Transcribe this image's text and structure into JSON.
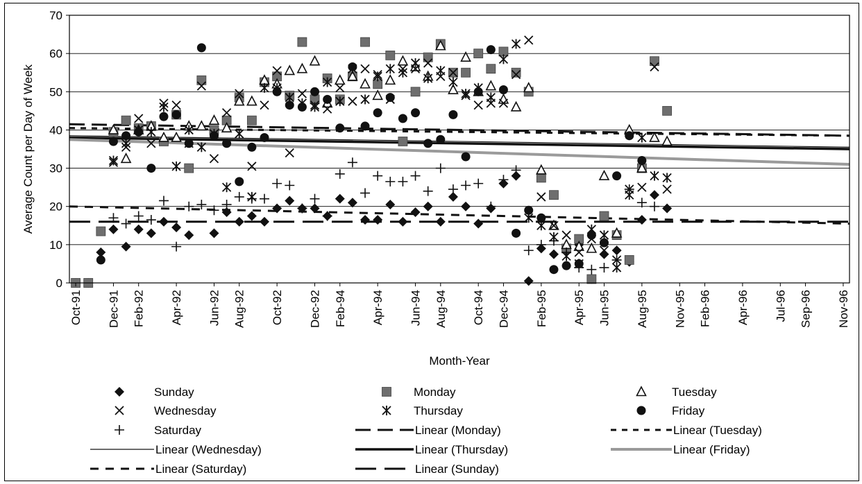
{
  "chart_data": {
    "type": "scatter",
    "title": "",
    "xlabel": "Month-Year",
    "ylabel": "Average Count per Day of Week",
    "ylim": [
      0,
      70
    ],
    "yticks": [
      0,
      10,
      20,
      30,
      40,
      50,
      60,
      70
    ],
    "x_tick_labels": [
      "Oct-91",
      "Dec-91",
      "Feb-92",
      "Apr-92",
      "Jun-92",
      "Aug-92",
      "Oct-92",
      "Dec-92",
      "Feb-94",
      "Apr-94",
      "Jun-94",
      "Aug-94",
      "Oct-94",
      "Dec-94",
      "Feb-95",
      "Apr-95",
      "Jun-95",
      "Aug-95",
      "Nov-95",
      "Feb-96",
      "Apr-96",
      "Jul-96",
      "Sep-96",
      "Nov-96"
    ],
    "x_count": 62,
    "grid": "horizontal",
    "legend_position": "bottom",
    "series": [
      {
        "name": "Sunday",
        "marker": "diamond",
        "x": [
          0,
          1,
          2,
          3,
          4,
          5,
          6,
          7,
          8,
          9,
          10,
          11,
          12,
          13,
          14,
          15,
          16,
          17,
          18,
          19,
          20,
          21,
          22,
          23,
          24,
          25,
          26,
          27,
          28,
          29,
          30,
          31,
          32,
          33,
          34,
          35,
          36,
          37,
          38,
          39,
          40,
          41,
          42,
          43,
          44,
          45,
          46,
          47,
          48,
          49,
          50,
          51,
          52,
          53,
          54,
          55,
          56,
          57,
          58,
          59,
          60,
          61
        ],
        "y": [
          0,
          0,
          8,
          14,
          9.5,
          14,
          13,
          16,
          14.5,
          12.5,
          null,
          13,
          18.5,
          16,
          17.5,
          16,
          19.5,
          21.5,
          19.5,
          19.5,
          17.5,
          22,
          21,
          16.5,
          16.5,
          20.5,
          16,
          18.5,
          20,
          16,
          22.5,
          20,
          15.5,
          19.5,
          26,
          28,
          0.5,
          9,
          7.5,
          8.5,
          10,
          1,
          7.5,
          8.5,
          5.5,
          16.5,
          23,
          19.5,
          null,
          null,
          null,
          null,
          null,
          null,
          null,
          null,
          null,
          null,
          null,
          null,
          null,
          null
        ]
      },
      {
        "name": "Monday",
        "marker": "square",
        "x": [
          0,
          1,
          2,
          3,
          4,
          5,
          6,
          7,
          8,
          9,
          10,
          11,
          12,
          13,
          14,
          15,
          16,
          17,
          18,
          19,
          20,
          21,
          22,
          23,
          24,
          25,
          26,
          27,
          28,
          29,
          30,
          31,
          32,
          33,
          34,
          35,
          36,
          37,
          38,
          39,
          40,
          41,
          42,
          43,
          44,
          45,
          46,
          47
        ],
        "y": [
          0,
          0,
          13.5,
          39.5,
          42.5,
          40.5,
          41,
          37,
          44,
          30,
          53,
          40,
          42.5,
          48.5,
          42.5,
          52.5,
          54,
          49,
          63,
          48,
          53.5,
          48,
          54,
          63,
          52,
          59.5,
          37,
          50,
          59,
          62.5,
          55,
          55,
          60,
          56,
          60.5,
          55,
          50,
          27.5,
          23,
          9,
          11.5,
          1,
          17.5,
          12.5,
          6,
          30,
          58,
          45
        ]
      },
      {
        "name": "Tuesday",
        "marker": "triangle",
        "x": [
          3,
          4,
          5,
          6,
          7,
          8,
          9,
          10,
          11,
          12,
          13,
          14,
          15,
          16,
          17,
          18,
          19,
          20,
          21,
          22,
          23,
          24,
          25,
          26,
          27,
          28,
          29,
          30,
          31,
          32,
          33,
          34,
          35,
          36,
          37,
          38,
          39,
          40,
          41,
          42,
          43,
          44,
          45,
          46,
          47
        ],
        "y": [
          40,
          32.5,
          40,
          41,
          38,
          38,
          41,
          41,
          42.5,
          40.5,
          47.5,
          47.5,
          53,
          52,
          55.5,
          56,
          58,
          47,
          53,
          54,
          52,
          49,
          53,
          58,
          56.5,
          54,
          62,
          50.5,
          59,
          50,
          51.5,
          48,
          46,
          51,
          29.5,
          15,
          10,
          9.5,
          9,
          28,
          13,
          40,
          30,
          38,
          37
        ]
      },
      {
        "name": "Wednesday",
        "marker": "x",
        "x": [
          3,
          4,
          5,
          6,
          7,
          8,
          9,
          10,
          11,
          12,
          13,
          14,
          15,
          16,
          17,
          18,
          19,
          20,
          21,
          22,
          23,
          24,
          25,
          26,
          27,
          28,
          29,
          30,
          31,
          32,
          33,
          34,
          35,
          36,
          37,
          38,
          39,
          40,
          41,
          42,
          43,
          44,
          45,
          46,
          47
        ],
        "y": [
          31.5,
          35.5,
          43,
          36.5,
          47,
          46.5,
          36.5,
          51.5,
          32.5,
          44.5,
          49.5,
          30.5,
          46.5,
          55.5,
          34,
          49.5,
          46.5,
          45.5,
          51,
          47.5,
          56,
          54.5,
          48,
          56,
          56,
          57.5,
          54,
          55,
          49,
          46.5,
          47,
          47,
          54.5,
          63.5,
          22.5,
          15,
          12.5,
          8,
          11.5,
          8.5,
          6,
          24.5,
          25,
          56.5,
          24.5
        ]
      },
      {
        "name": "Thursday",
        "marker": "asterisk",
        "x": [
          3,
          4,
          5,
          6,
          7,
          8,
          9,
          10,
          11,
          12,
          13,
          14,
          15,
          16,
          17,
          18,
          19,
          20,
          21,
          22,
          23,
          24,
          25,
          26,
          27,
          28,
          29,
          30,
          31,
          32,
          33,
          34,
          35,
          36,
          37,
          38,
          39,
          40,
          41,
          42,
          43,
          44,
          45,
          46,
          47
        ],
        "y": [
          32,
          36.5,
          40,
          39.5,
          46,
          30.5,
          40,
          35.5,
          39,
          25,
          39,
          22.5,
          51,
          51,
          48.5,
          47,
          46,
          52.5,
          47.5,
          56,
          48,
          54,
          56,
          55,
          57.5,
          53.5,
          55.5,
          52.5,
          49.5,
          51,
          48.5,
          58.5,
          62.5,
          17,
          15,
          12,
          7,
          5,
          14,
          12.5,
          4,
          23,
          38,
          28,
          27.5
        ]
      },
      {
        "name": "Friday",
        "marker": "circle",
        "x": [
          2,
          3,
          4,
          5,
          6,
          7,
          8,
          9,
          10,
          11,
          12,
          13,
          14,
          15,
          16,
          17,
          18,
          19,
          20,
          21,
          22,
          23,
          24,
          25,
          26,
          27,
          28,
          29,
          30,
          31,
          32,
          33,
          34,
          35,
          36,
          37,
          38,
          39,
          40,
          41,
          42,
          43,
          44,
          45,
          46,
          47
        ],
        "y": [
          6,
          37,
          38.5,
          39.5,
          30,
          43.5,
          44,
          36.5,
          61.5,
          38.5,
          36.5,
          26.5,
          35.5,
          38,
          50,
          46.5,
          46,
          50,
          48,
          40.5,
          56.5,
          41,
          44.5,
          48.5,
          43,
          44.5,
          36.5,
          37.5,
          44,
          33,
          50,
          61,
          50.5,
          13,
          19,
          17,
          3.5,
          4.5,
          5,
          12.5,
          10.5,
          28,
          38.5,
          32,
          null,
          null
        ]
      },
      {
        "name": "Saturday",
        "marker": "plus",
        "x": [
          3,
          4,
          5,
          6,
          7,
          8,
          9,
          10,
          11,
          12,
          13,
          14,
          15,
          16,
          17,
          18,
          19,
          20,
          21,
          22,
          23,
          24,
          25,
          26,
          27,
          28,
          29,
          30,
          31,
          32,
          33,
          34,
          35,
          36,
          37,
          38,
          39,
          40,
          41,
          42,
          43,
          44,
          45,
          46,
          47
        ],
        "y": [
          17,
          15.5,
          17.5,
          16.5,
          21.5,
          9.5,
          20,
          20.5,
          19,
          20.5,
          22.5,
          22,
          22,
          26,
          25.5,
          19.5,
          22,
          17.5,
          28.5,
          31.5,
          23.5,
          28,
          26.5,
          26.5,
          28,
          24,
          30,
          24.5,
          25.5,
          26,
          20,
          27,
          29.5,
          8.5,
          10,
          11,
          8,
          4,
          3.5,
          4,
          6,
          24.5,
          21,
          20,
          null
        ]
      }
    ],
    "trendlines": [
      {
        "name": "Linear (Monday)",
        "y_start": 41.5,
        "y_end": 38.5
      },
      {
        "name": "Linear (Tuesday)",
        "y_start": 40.5,
        "y_end": 38.5
      },
      {
        "name": "Linear (Wednesday)",
        "y_start": 38.5,
        "y_end": 35.5
      },
      {
        "name": "Linear (Thursday)",
        "y_start": 38,
        "y_end": 35
      },
      {
        "name": "Linear (Friday)",
        "y_start": 37.5,
        "y_end": 31
      },
      {
        "name": "Linear (Saturday)",
        "y_start": 20,
        "y_end": 15.5
      },
      {
        "name": "Linear (Sunday)",
        "y_start": 16,
        "y_end": 16
      }
    ],
    "legend": [
      {
        "label": "Sunday",
        "kind": "diamond"
      },
      {
        "label": "Monday",
        "kind": "square"
      },
      {
        "label": "Tuesday",
        "kind": "triangle"
      },
      {
        "label": "Wednesday",
        "kind": "x"
      },
      {
        "label": "Thursday",
        "kind": "asterisk"
      },
      {
        "label": "Friday",
        "kind": "circle"
      },
      {
        "label": "Saturday",
        "kind": "plus"
      },
      {
        "label": "Linear (Monday)",
        "kind": "long-dash"
      },
      {
        "label": "Linear (Tuesday)",
        "kind": "short-dash"
      },
      {
        "label": "Linear (Wednesday)",
        "kind": "thin-line"
      },
      {
        "label": "Linear (Thursday)",
        "kind": "thick-line"
      },
      {
        "label": "Linear (Friday)",
        "kind": "gray-line"
      },
      {
        "label": "Linear (Saturday)",
        "kind": "medium-dash"
      },
      {
        "label": "Linear (Sunday)",
        "kind": "long-dash-2"
      }
    ],
    "colors": {
      "marker": "#111111",
      "monday": "#6e6e6e",
      "grid": "#000000",
      "friday_trend": "#9a9a9a"
    }
  }
}
